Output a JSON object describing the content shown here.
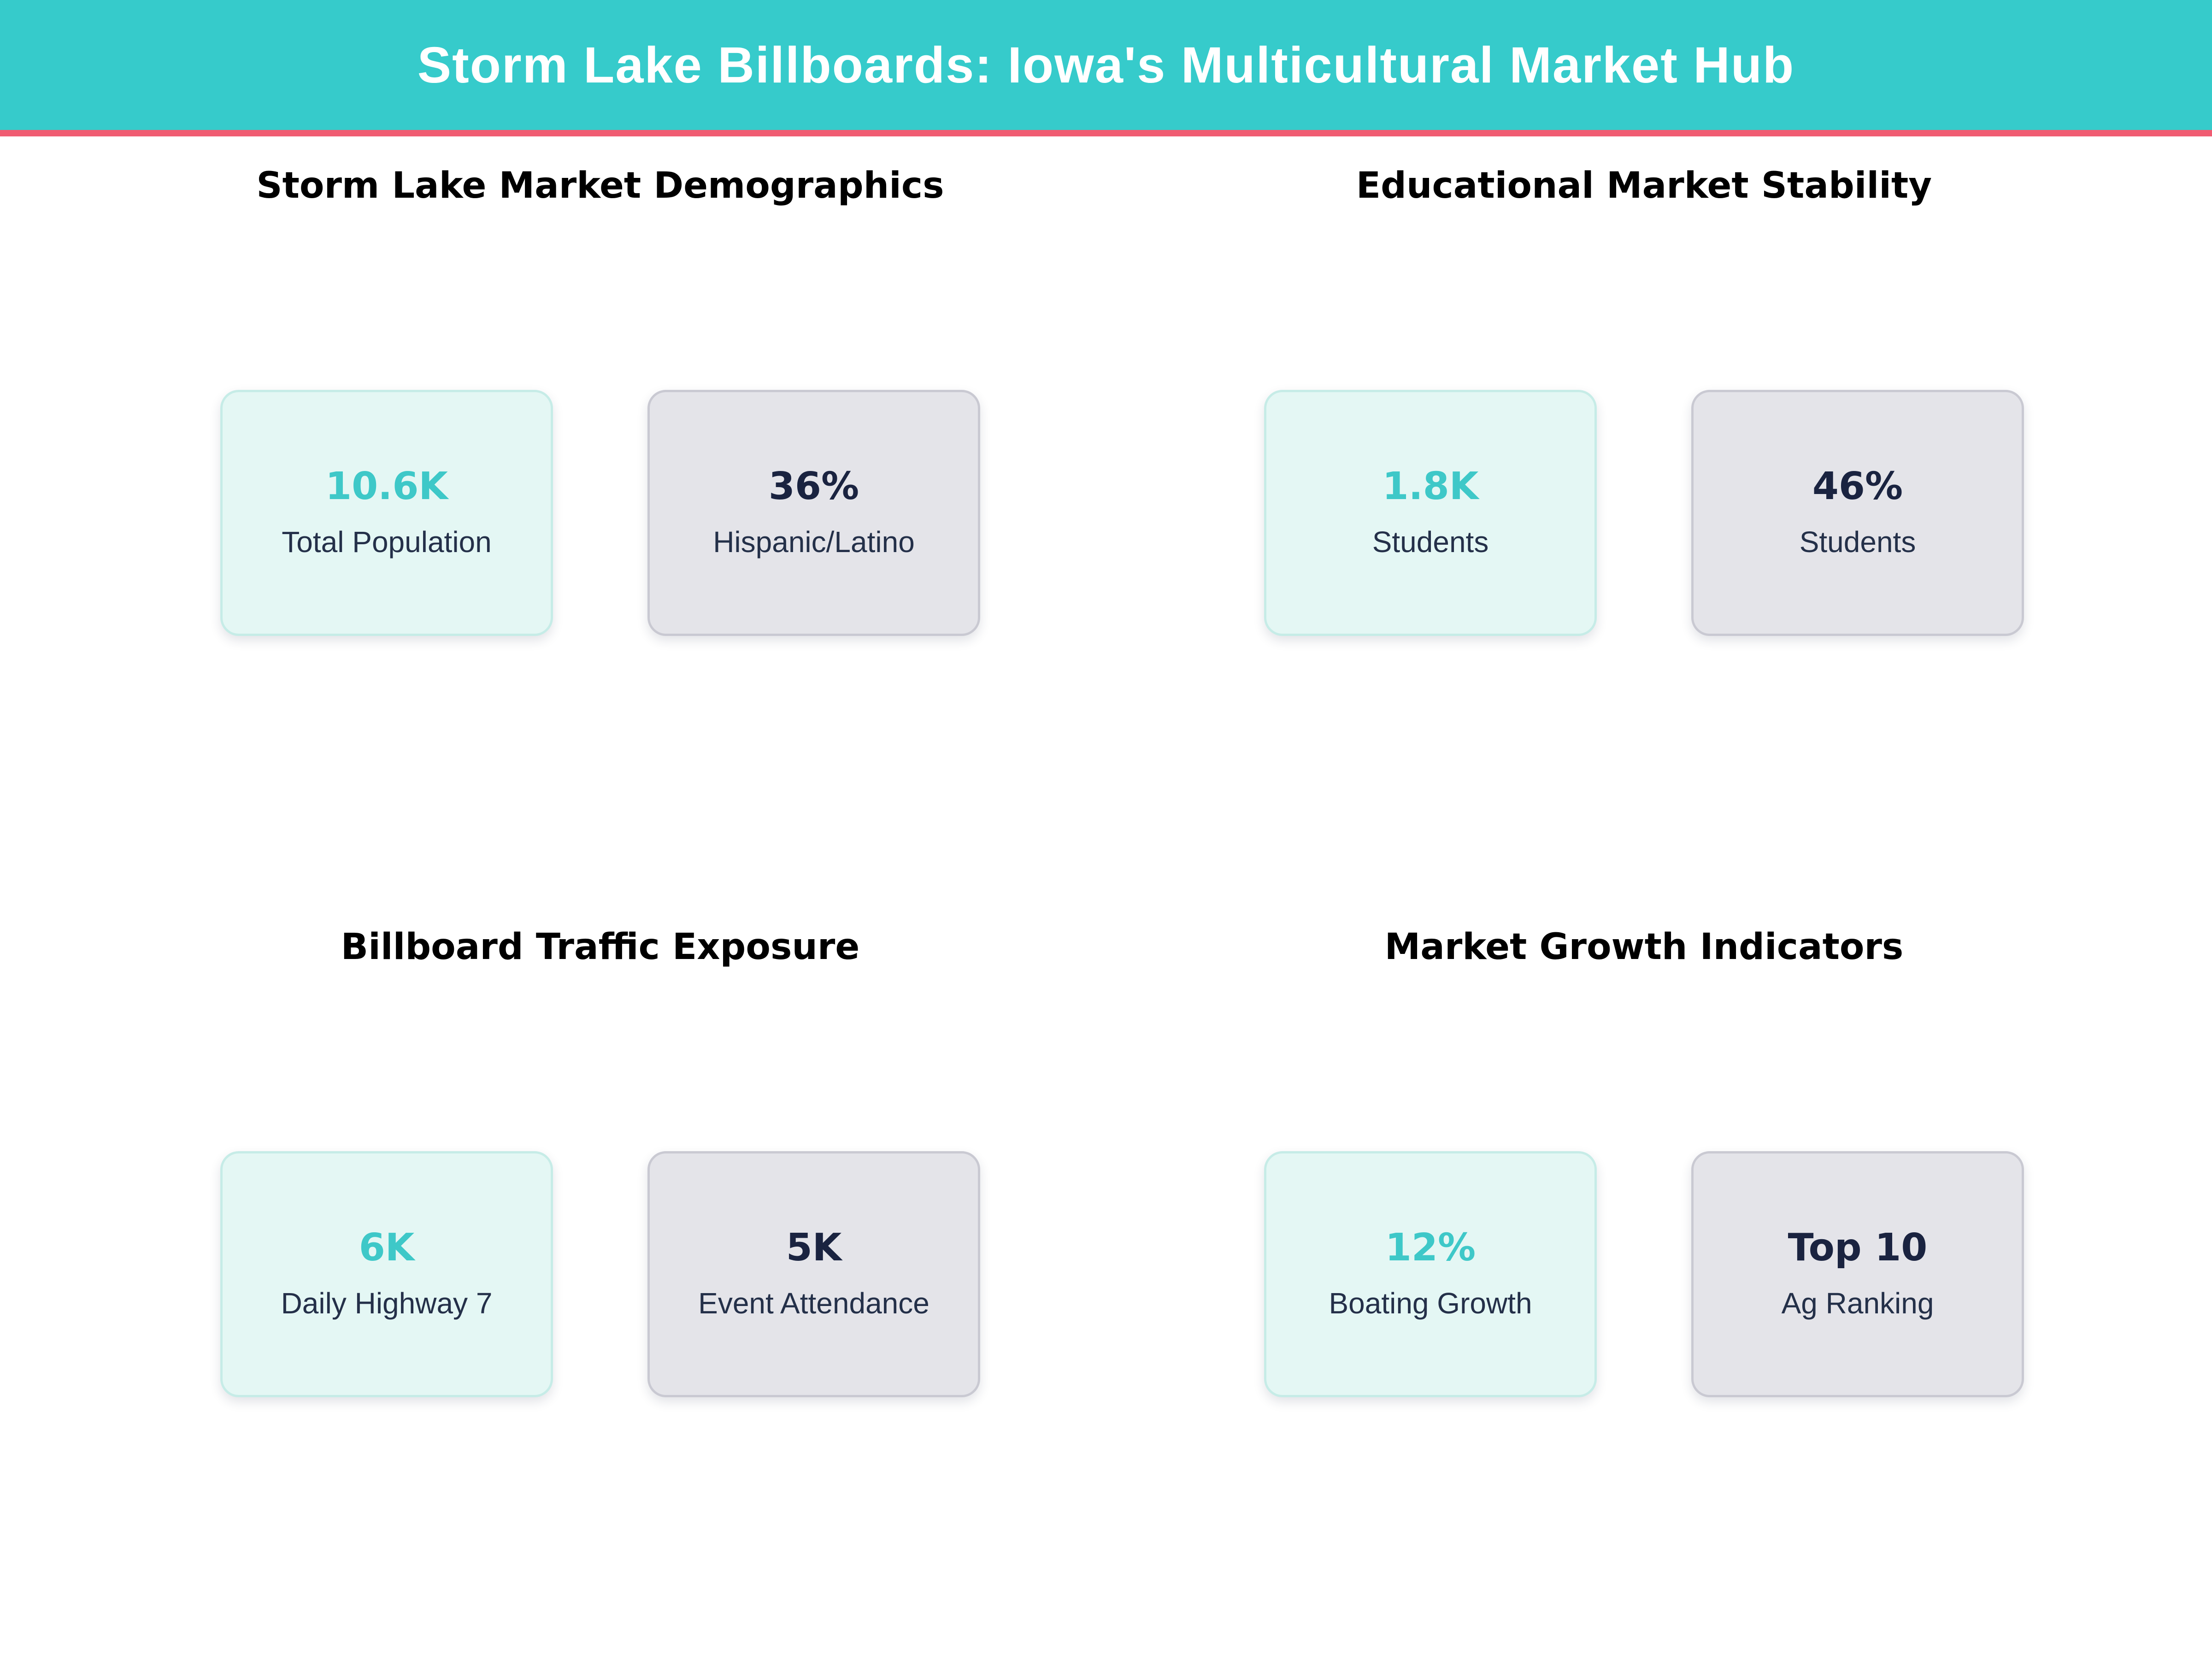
{
  "header": {
    "title": "Storm Lake Billboards: Iowa's Multicultural Market Hub"
  },
  "theme": {
    "header_bg": "#36CBCB",
    "header_text": "#FFFFFF",
    "divider": "#F05C72",
    "section_title": "#000000",
    "accent_teal": "#3EC8C8",
    "navy": "#1A2340",
    "label_navy": "#243049",
    "mint_bg": "#E4F7F4",
    "mint_border": "#C6ECE7",
    "gray_bg": "#E4E4E9",
    "gray_border": "#C9C9D2"
  },
  "sections": [
    {
      "title": "Storm Lake Market Demographics",
      "cards": [
        {
          "value": "10.6K",
          "label": "Total Population",
          "style": "mint",
          "value_color": "teal"
        },
        {
          "value": "36%",
          "label": "Hispanic/Latino",
          "style": "gray",
          "value_color": "navy"
        }
      ]
    },
    {
      "title": "Educational Market Stability",
      "cards": [
        {
          "value": "1.8K",
          "label": "Students",
          "style": "mint",
          "value_color": "teal"
        },
        {
          "value": "46%",
          "label": "Students",
          "style": "gray",
          "value_color": "navy"
        }
      ]
    },
    {
      "title": "Billboard Traffic Exposure",
      "cards": [
        {
          "value": "6K",
          "label": "Daily Highway 7",
          "style": "mint",
          "value_color": "teal"
        },
        {
          "value": "5K",
          "label": "Event Attendance",
          "style": "gray",
          "value_color": "navy"
        }
      ]
    },
    {
      "title": "Market Growth Indicators",
      "cards": [
        {
          "value": "12%",
          "label": "Boating Growth",
          "style": "mint",
          "value_color": "teal"
        },
        {
          "value": "Top 10",
          "label": "Ag Ranking",
          "style": "gray",
          "value_color": "navy"
        }
      ]
    }
  ],
  "chart_data": [
    {
      "type": "table",
      "title": "Storm Lake Market Demographics",
      "categories": [
        "Total Population",
        "Hispanic/Latino"
      ],
      "values": [
        "10.6K",
        "36%"
      ]
    },
    {
      "type": "table",
      "title": "Educational Market Stability",
      "categories": [
        "Students",
        "Students"
      ],
      "values": [
        "1.8K",
        "46%"
      ]
    },
    {
      "type": "table",
      "title": "Billboard Traffic Exposure",
      "categories": [
        "Daily Highway 7",
        "Event Attendance"
      ],
      "values": [
        "6K",
        "5K"
      ]
    },
    {
      "type": "table",
      "title": "Market Growth Indicators",
      "categories": [
        "Boating Growth",
        "Ag Ranking"
      ],
      "values": [
        "12%",
        "Top 10"
      ]
    }
  ]
}
